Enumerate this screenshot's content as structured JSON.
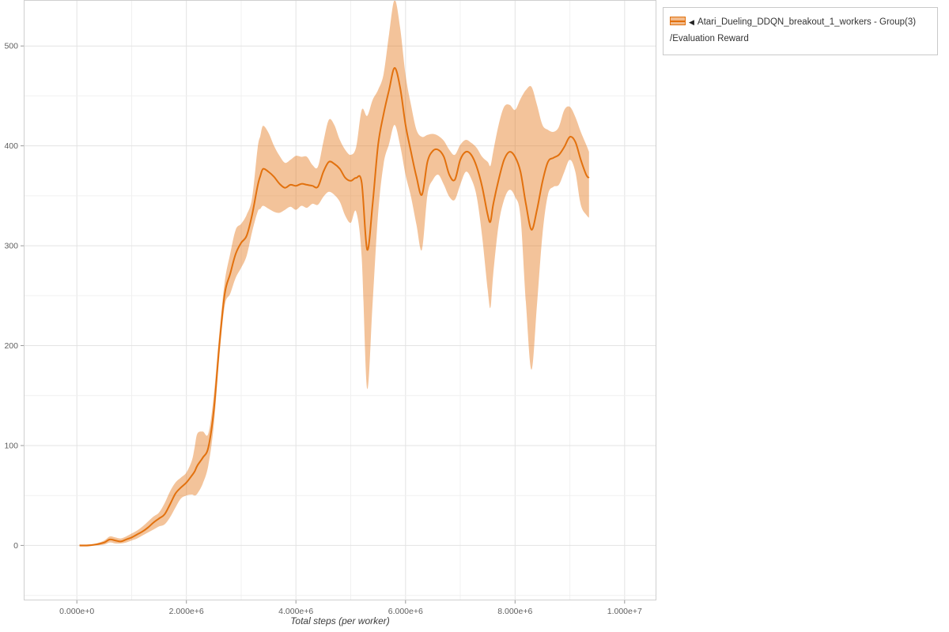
{
  "colors": {
    "line": "#e2710e",
    "band_fill": "#e2710e",
    "band_opacity": 0.42,
    "legend_swatch_fill": "#f2bb8d",
    "grid_minor": "#f0f0f0",
    "grid_major": "#e3e3e3",
    "axis_frame": "#cfcfcf",
    "tick_mark": "#999999",
    "tick_label": "#606060",
    "axis_title": "#3c3c3c",
    "legend_border": "#c9c9c9",
    "legend_text": "#333333"
  },
  "legend": {
    "collapse_icon": "◀",
    "series_name": "Atari_Dueling_DDQN_breakout_1_workers - Group(3)",
    "metric_name": "/Evaluation Reward"
  },
  "chart_data": {
    "type": "line",
    "title": "",
    "xlabel": "Total steps (per worker)",
    "ylabel": "",
    "grid": true,
    "legend_position": "top-right",
    "x_unit_multiplier": 1000000,
    "xlim_units": [
      -0.97,
      10.58
    ],
    "ylim": [
      -55,
      546
    ],
    "x_minor_step_units": 1,
    "y_minor_step": 50,
    "x_major_ticks": [
      {
        "value_units": 0,
        "label": "0.000e+0"
      },
      {
        "value_units": 2,
        "label": "2.000e+6"
      },
      {
        "value_units": 4,
        "label": "4.000e+6"
      },
      {
        "value_units": 6,
        "label": "6.000e+6"
      },
      {
        "value_units": 8,
        "label": "8.000e+6"
      },
      {
        "value_units": 10,
        "label": "1.000e+7"
      }
    ],
    "y_major_ticks": [
      {
        "value": 0,
        "label": "0"
      },
      {
        "value": 100,
        "label": "100"
      },
      {
        "value": 200,
        "label": "200"
      },
      {
        "value": 300,
        "label": "300"
      },
      {
        "value": 400,
        "label": "400"
      },
      {
        "value": 500,
        "label": "500"
      }
    ],
    "series": [
      {
        "name": "Atari_Dueling_DDQN_breakout_1_workers - Group(3)/Evaluation Reward",
        "x_units": [
          0.05,
          0.2,
          0.35,
          0.5,
          0.6,
          0.7,
          0.8,
          0.9,
          1.0,
          1.1,
          1.2,
          1.3,
          1.4,
          1.5,
          1.6,
          1.7,
          1.8,
          1.9,
          2.0,
          2.1,
          2.15,
          2.2,
          2.3,
          2.4,
          2.5,
          2.6,
          2.7,
          2.8,
          2.9,
          3.0,
          3.1,
          3.2,
          3.3,
          3.35,
          3.4,
          3.5,
          3.6,
          3.7,
          3.8,
          3.9,
          4.0,
          4.1,
          4.2,
          4.3,
          4.4,
          4.5,
          4.6,
          4.7,
          4.8,
          4.9,
          5.0,
          5.1,
          5.2,
          5.3,
          5.4,
          5.5,
          5.6,
          5.7,
          5.8,
          5.9,
          6.0,
          6.1,
          6.2,
          6.3,
          6.4,
          6.5,
          6.6,
          6.7,
          6.8,
          6.9,
          7.0,
          7.1,
          7.2,
          7.3,
          7.4,
          7.5,
          7.55,
          7.6,
          7.7,
          7.8,
          7.9,
          8.0,
          8.1,
          8.2,
          8.3,
          8.4,
          8.5,
          8.6,
          8.7,
          8.8,
          8.9,
          9.0,
          9.1,
          9.2,
          9.3,
          9.35
        ],
        "mean": [
          0,
          0,
          1,
          3,
          6,
          5,
          4,
          6,
          8,
          11,
          14,
          18,
          23,
          27,
          31,
          41,
          52,
          58,
          63,
          70,
          74,
          80,
          88,
          98,
          135,
          200,
          252,
          272,
          292,
          303,
          310,
          331,
          360,
          370,
          377,
          374,
          369,
          362,
          358,
          361,
          360,
          362,
          361,
          360,
          359,
          374,
          384,
          382,
          377,
          368,
          365,
          368,
          363,
          296,
          342,
          401,
          432,
          456,
          478,
          459,
          421,
          394,
          369,
          351,
          384,
          395,
          396,
          389,
          371,
          366,
          386,
          394,
          391,
          379,
          359,
          331,
          324,
          341,
          366,
          386,
          394,
          389,
          374,
          341,
          316,
          336,
          364,
          384,
          388,
          391,
          399,
          409,
          404,
          386,
          371,
          368
        ],
        "band_low": [
          -1,
          -1,
          0,
          1,
          3,
          2,
          2,
          3,
          5,
          7,
          10,
          13,
          16,
          19,
          21,
          28,
          38,
          47,
          50,
          51,
          50,
          52,
          62,
          80,
          120,
          188,
          240,
          252,
          268,
          278,
          290,
          314,
          334,
          337,
          340,
          337,
          334,
          333,
          336,
          339,
          336,
          340,
          338,
          342,
          341,
          349,
          354,
          351,
          344,
          330,
          323,
          334,
          288,
          157,
          243,
          332,
          382,
          402,
          421,
          401,
          371,
          349,
          321,
          296,
          351,
          366,
          371,
          361,
          349,
          346,
          361,
          374,
          367,
          349,
          309,
          256,
          238,
          271,
          321,
          346,
          356,
          349,
          329,
          241,
          176,
          241,
          311,
          351,
          359,
          361,
          374,
          386,
          374,
          341,
          331,
          328
        ],
        "band_high": [
          1,
          1,
          2,
          5,
          9,
          8,
          7,
          9,
          12,
          15,
          19,
          24,
          29,
          33,
          42,
          54,
          63,
          68,
          73,
          85,
          98,
          112,
          114,
          112,
          150,
          212,
          264,
          292,
          316,
          322,
          331,
          348,
          398,
          410,
          420,
          413,
          400,
          390,
          383,
          386,
          390,
          389,
          389,
          381,
          379,
          404,
          426,
          421,
          406,
          396,
          391,
          399,
          436,
          430,
          446,
          456,
          472,
          512,
          546,
          519,
          471,
          441,
          416,
          409,
          411,
          412,
          410,
          405,
          396,
          391,
          401,
          406,
          403,
          398,
          389,
          384,
          380,
          394,
          421,
          439,
          441,
          436,
          447,
          456,
          459,
          441,
          421,
          416,
          414,
          419,
          436,
          439,
          429,
          414,
          401,
          394
        ]
      }
    ]
  }
}
